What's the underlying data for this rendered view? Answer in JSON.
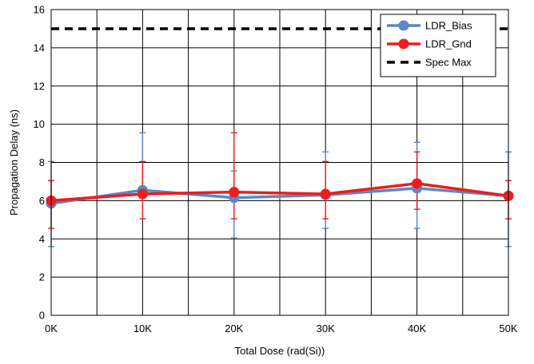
{
  "chart_data": {
    "type": "line",
    "xlabel": "Total Dose (rad(Si))",
    "ylabel": "Propagation Delay (ns)",
    "categories": [
      "0K",
      "10K",
      "20K",
      "30K",
      "40K",
      "50K"
    ],
    "x": [
      0,
      10,
      20,
      30,
      40,
      50
    ],
    "xlim": [
      0,
      50
    ],
    "ylim": [
      0,
      16
    ],
    "yticks": [
      0,
      2,
      4,
      6,
      8,
      10,
      12,
      14,
      16
    ],
    "grid": true,
    "legend_position": "top-right",
    "series": [
      {
        "name": "LDR_Bias",
        "color": "#5b87c5",
        "marker": "circle",
        "values": [
          5.85,
          6.55,
          6.15,
          6.3,
          6.65,
          6.25
        ],
        "error_low": [
          3.6,
          6.4,
          4.05,
          4.55,
          4.55,
          3.6
        ],
        "error_high": [
          8.05,
          9.55,
          7.55,
          8.55,
          9.05,
          8.55
        ]
      },
      {
        "name": "LDR_Gnd",
        "color": "#ee1c1c",
        "marker": "circle",
        "values": [
          6.0,
          6.35,
          6.45,
          6.35,
          6.9,
          6.25
        ],
        "error_low": [
          4.55,
          5.05,
          5.05,
          5.05,
          5.55,
          5.05
        ],
        "error_high": [
          7.05,
          8.05,
          9.55,
          8.05,
          8.55,
          7.05
        ]
      },
      {
        "name": "Spec Max",
        "color": "#000000",
        "style": "dashed",
        "values": [
          15,
          15,
          15,
          15,
          15,
          15
        ]
      }
    ]
  }
}
